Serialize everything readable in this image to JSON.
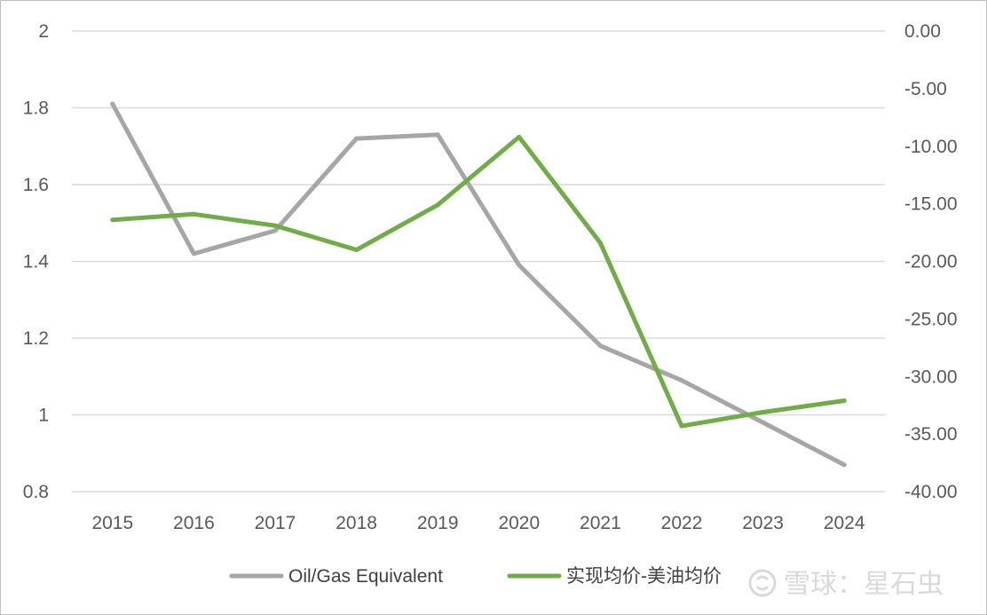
{
  "chart_data": {
    "type": "line",
    "title": "",
    "xlabel": "",
    "ylabel": "",
    "categories": [
      "2015",
      "2016",
      "2017",
      "2018",
      "2019",
      "2020",
      "2021",
      "2022",
      "2023",
      "2024"
    ],
    "y_left": {
      "range": [
        0.8,
        2.0
      ],
      "ticks": [
        0.8,
        1.0,
        1.2,
        1.4,
        1.6,
        1.8,
        2.0
      ],
      "tick_labels": [
        "0.8",
        "1",
        "1.2",
        "1.4",
        "1.6",
        "1.8",
        "2"
      ]
    },
    "y_right": {
      "range": [
        -40.0,
        0.0
      ],
      "ticks": [
        -40,
        -35,
        -30,
        -25,
        -20,
        -15,
        -10,
        -5,
        0
      ],
      "tick_labels": [
        "-40.00",
        "-35.00",
        "-30.00",
        "-25.00",
        "-20.00",
        "-15.00",
        "-10.00",
        "-5.00",
        "0.00"
      ]
    },
    "series": [
      {
        "name": "Oil/Gas Equivalent",
        "axis": "left",
        "color": "#a6a6a6",
        "values": [
          1.81,
          1.42,
          1.48,
          1.72,
          1.73,
          1.39,
          1.18,
          1.09,
          0.98,
          0.87
        ]
      },
      {
        "name": "实现均价-美油均价",
        "axis": "right",
        "color": "#70ad47",
        "values": [
          -16.4,
          -15.9,
          -16.9,
          -19.0,
          -15.1,
          -9.2,
          -18.4,
          -34.3,
          -33.1,
          -32.1
        ]
      }
    ],
    "grid": true,
    "legend_position": "bottom"
  },
  "watermark": {
    "text": "雪球：星石虫"
  }
}
